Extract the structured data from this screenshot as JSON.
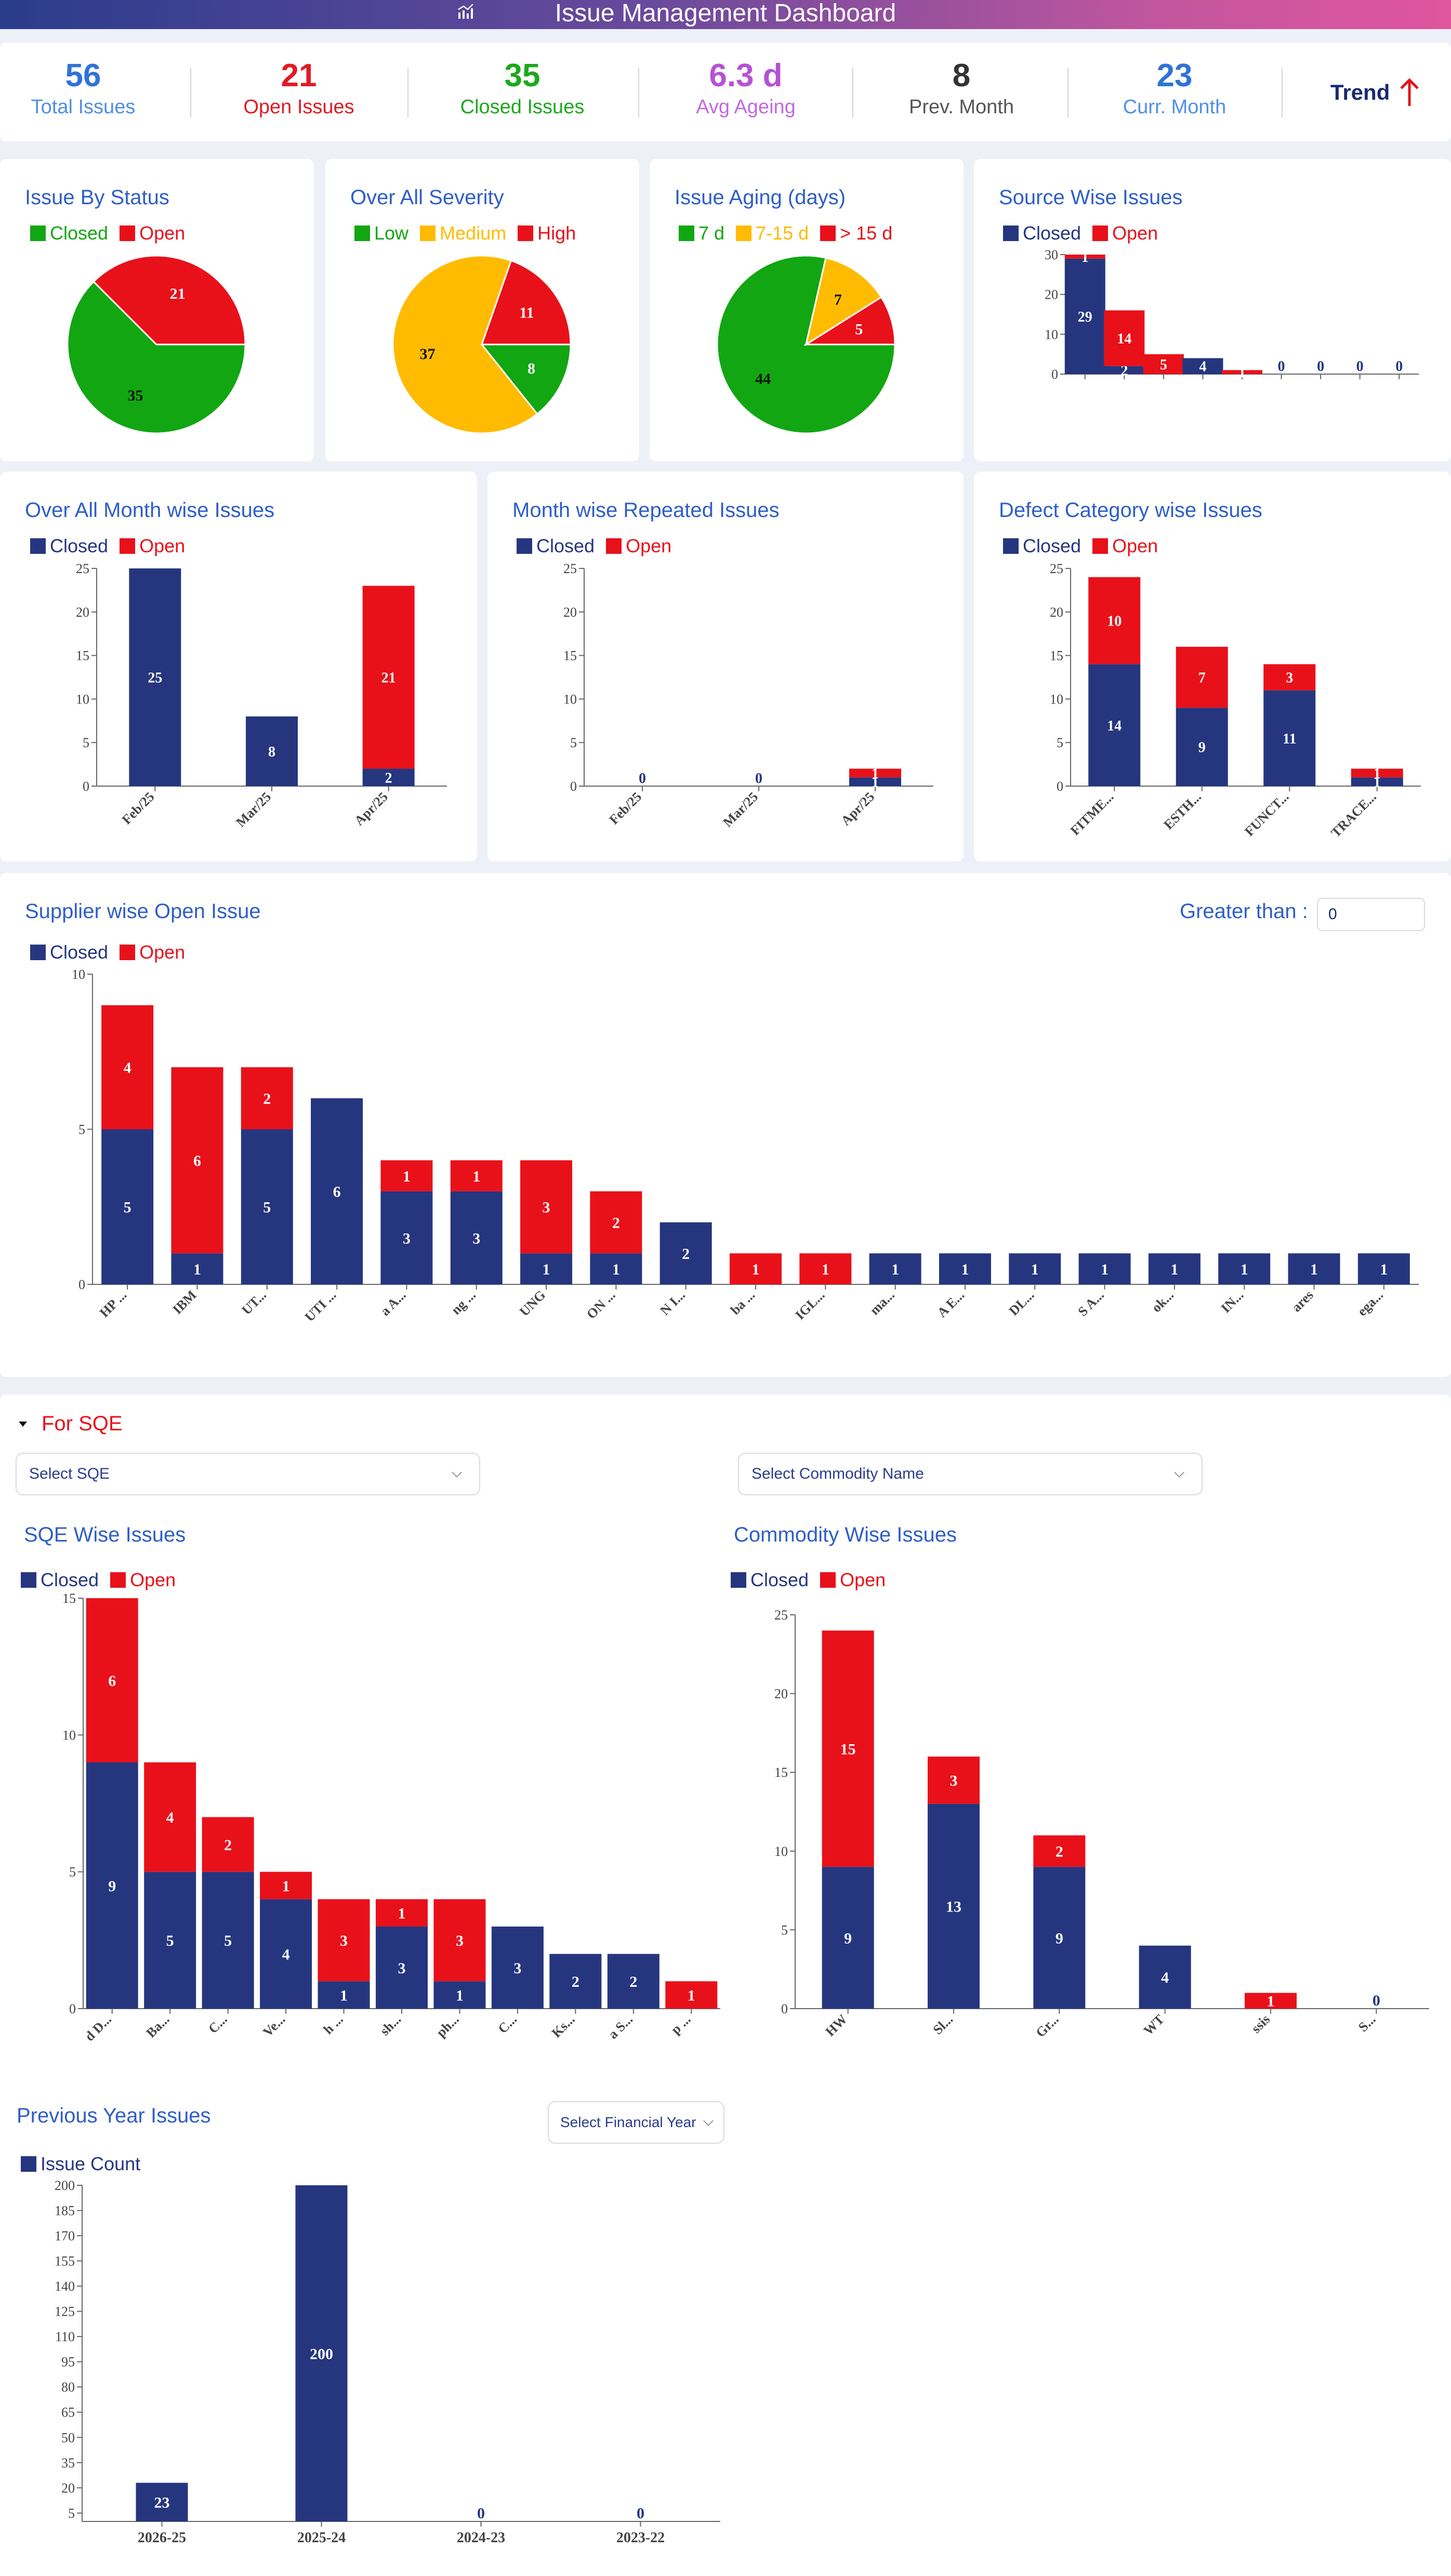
{
  "header": {
    "title": "Issue Management Dashboard",
    "icon": "chart-icon"
  },
  "kpis": [
    {
      "value": "56",
      "label": "Total Issues",
      "color": "#2f73d6",
      "lcolor": "#4f8fe6"
    },
    {
      "value": "21",
      "label": "Open Issues",
      "color": "#e01b24",
      "lcolor": "#e01b24"
    },
    {
      "value": "35",
      "label": "Closed Issues",
      "color": "#1ca81c",
      "lcolor": "#1ca81c"
    },
    {
      "value": "6.3 d",
      "label": "Avg Ageing",
      "color": "#b452d6",
      "lcolor": "#c06ae0"
    },
    {
      "value": "8",
      "label": "Prev. Month",
      "color": "#333333",
      "lcolor": "#555555"
    },
    {
      "value": "23",
      "label": "Curr. Month",
      "color": "#2f73d6",
      "lcolor": "#4f8fe6"
    }
  ],
  "trend": {
    "label": "Trend",
    "icon": "arrow-up-icon"
  },
  "colors": {
    "closed": "#25367f",
    "open": "#e8111a",
    "green": "#12a612",
    "yellow": "#ffbb00",
    "red": "#e8111a"
  },
  "legend": {
    "closed": "Closed",
    "open": "Open",
    "low": "Low",
    "medium": "Medium",
    "high": "High",
    "d7": "7 d",
    "d715": "7-15 d",
    "d15": "> 15 d",
    "count": "Issue Count"
  },
  "filters": {
    "greater_than_label": "Greater than :",
    "greater_than_value": "0",
    "sqe_toggle": "For SQE",
    "select_sqe": "Select SQE",
    "select_commodity": "Select Commodity Name",
    "select_fy": "Select Financial Year"
  },
  "chart_data": [
    {
      "id": "status",
      "type": "pie",
      "title": "Issue By Status",
      "labels": [
        "Closed",
        "Open"
      ],
      "values": [
        35,
        21
      ],
      "colors": [
        "#12a612",
        "#e8111a"
      ]
    },
    {
      "id": "severity",
      "type": "pie",
      "title": "Over All Severity",
      "labels": [
        "Low",
        "Medium",
        "High"
      ],
      "values": [
        8,
        37,
        11
      ],
      "colors": [
        "#12a612",
        "#ffbb00",
        "#e8111a"
      ]
    },
    {
      "id": "aging",
      "type": "pie",
      "title": "Issue Aging (days)",
      "labels": [
        "7 d",
        "7-15 d",
        "> 15 d"
      ],
      "values": [
        44,
        7,
        5
      ],
      "colors": [
        "#12a612",
        "#ffbb00",
        "#e8111a"
      ]
    },
    {
      "id": "source",
      "type": "bar",
      "stacked": true,
      "title": "Source Wise Issues",
      "categories": [
        "",
        "",
        "",
        "",
        "",
        "",
        "",
        "",
        ""
      ],
      "series": [
        {
          "name": "Closed",
          "values": [
            29,
            2,
            0,
            4,
            0,
            0,
            0,
            0,
            0
          ]
        },
        {
          "name": "Open",
          "values": [
            1,
            14,
            5,
            0,
            1,
            0,
            0,
            0,
            0
          ]
        }
      ],
      "ylim": [
        0,
        30
      ],
      "yticks": [
        0,
        10,
        20,
        30
      ]
    },
    {
      "id": "month",
      "type": "bar",
      "stacked": true,
      "title": "Over All Month wise Issues",
      "categories": [
        "Feb/25",
        "Mar/25",
        "Apr/25"
      ],
      "series": [
        {
          "name": "Closed",
          "values": [
            25,
            8,
            2
          ]
        },
        {
          "name": "Open",
          "values": [
            0,
            0,
            21
          ]
        }
      ],
      "ylim": [
        0,
        25
      ],
      "yticks": [
        0,
        5,
        10,
        15,
        20,
        25
      ]
    },
    {
      "id": "repeated",
      "type": "bar",
      "stacked": true,
      "title": "Month wise Repeated Issues",
      "categories": [
        "Feb/25",
        "Mar/25",
        "Apr/25"
      ],
      "series": [
        {
          "name": "Closed",
          "values": [
            0,
            0,
            1
          ]
        },
        {
          "name": "Open",
          "values": [
            0,
            0,
            1
          ]
        }
      ],
      "ylim": [
        0,
        25
      ],
      "yticks": [
        0,
        5,
        10,
        15,
        20,
        25
      ]
    },
    {
      "id": "defect",
      "type": "bar",
      "stacked": true,
      "title": "Defect Category wise Issues",
      "categories": [
        "FITME...",
        "ESTH...",
        "FUNCT...",
        "TRACE..."
      ],
      "series": [
        {
          "name": "Closed",
          "values": [
            14,
            9,
            11,
            1
          ]
        },
        {
          "name": "Open",
          "values": [
            10,
            7,
            3,
            1
          ]
        }
      ],
      "ylim": [
        0,
        25
      ],
      "yticks": [
        0,
        5,
        10,
        15,
        20,
        25
      ]
    },
    {
      "id": "supplier",
      "type": "bar",
      "stacked": true,
      "title": "Supplier wise Open Issue",
      "categories": [
        "HP ...",
        "IBM",
        "UT...",
        "UTI ...",
        "a A...",
        "ng ...",
        "UNG",
        "ON ...",
        "N I...",
        "ba ...",
        "IGL...",
        "ma...",
        "A E...",
        "DL...",
        "S A...",
        "ok...",
        "IN...",
        "ares",
        "ega..."
      ],
      "series": [
        {
          "name": "Closed",
          "values": [
            5,
            1,
            5,
            6,
            3,
            3,
            1,
            1,
            2,
            0,
            0,
            1,
            1,
            1,
            1,
            1,
            1,
            1,
            1
          ]
        },
        {
          "name": "Open",
          "values": [
            4,
            6,
            2,
            0,
            1,
            1,
            3,
            2,
            0,
            1,
            1,
            0,
            0,
            0,
            0,
            0,
            0,
            0,
            0
          ]
        }
      ],
      "ylim": [
        0,
        10
      ],
      "yticks": [
        0,
        5,
        10
      ]
    },
    {
      "id": "sqe",
      "type": "bar",
      "stacked": true,
      "title": "SQE Wise Issues",
      "categories": [
        "d D...",
        "Ba...",
        "C...",
        "Ve...",
        "h ...",
        "sh...",
        "ph...",
        "C...",
        "Ks...",
        "a S...",
        "p ..."
      ],
      "series": [
        {
          "name": "Closed",
          "values": [
            9,
            5,
            5,
            4,
            1,
            3,
            1,
            3,
            2,
            2,
            0
          ]
        },
        {
          "name": "Open",
          "values": [
            6,
            4,
            2,
            1,
            3,
            1,
            3,
            0,
            0,
            0,
            1
          ]
        }
      ],
      "ylim": [
        0,
        15
      ],
      "yticks": [
        0,
        5,
        10,
        15
      ]
    },
    {
      "id": "commodity",
      "type": "bar",
      "stacked": true,
      "title": "Commodity Wise Issues",
      "categories": [
        "HW",
        "Sl...",
        "Gr...",
        "WT",
        "ssis",
        "S..."
      ],
      "series": [
        {
          "name": "Closed",
          "values": [
            9,
            13,
            9,
            4,
            0,
            0
          ]
        },
        {
          "name": "Open",
          "values": [
            15,
            3,
            2,
            0,
            1,
            0
          ]
        }
      ],
      "ylim": [
        0,
        25
      ],
      "yticks": [
        0,
        5,
        10,
        15,
        20,
        25
      ]
    },
    {
      "id": "prevyear",
      "type": "bar",
      "stacked": false,
      "title": "Previous Year Issues",
      "categories": [
        "2026-25",
        "2025-24",
        "2024-23",
        "2023-22"
      ],
      "series": [
        {
          "name": "Issue Count",
          "values": [
            23,
            200,
            0,
            0
          ]
        }
      ],
      "ylim": [
        0,
        200
      ],
      "yticks": [
        5,
        20,
        35,
        50,
        65,
        80,
        95,
        110,
        125,
        140,
        155,
        170,
        185,
        200
      ]
    }
  ]
}
